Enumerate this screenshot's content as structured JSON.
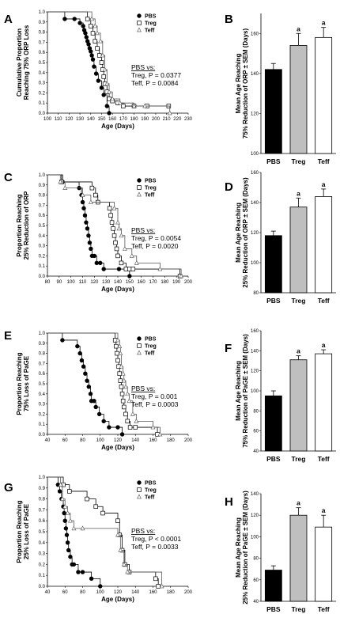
{
  "colors": {
    "PBS": "#000000",
    "Treg": "#bfbfbf",
    "Teff": "#ffffff"
  },
  "chart_data": [
    {
      "panel": "A",
      "type": "line",
      "subtype": "kaplan-meier",
      "xlabel": "Age (Days)",
      "ylabel": [
        "Cumulative Proportion",
        "Reaching 75% ORP Loss"
      ],
      "xlim": [
        100,
        230
      ],
      "ylim": [
        0,
        1
      ],
      "xticks": [
        100,
        110,
        120,
        130,
        140,
        150,
        160,
        170,
        180,
        190,
        200,
        210,
        220,
        230
      ],
      "yticks": [
        0,
        0.1,
        0.2,
        0.3,
        0.4,
        0.5,
        0.6,
        0.7,
        0.8,
        0.9,
        1
      ],
      "legend": {
        "position": "top-right",
        "entries": [
          "PBS",
          "Treg",
          "Teff"
        ]
      },
      "annotation": {
        "title": "PBS vs:",
        "lines": [
          "Treg, P = 0.0377",
          "Teff, P = 0.0084"
        ]
      },
      "series": [
        {
          "name": "PBS",
          "marker": "filled-circle",
          "x": [
            116,
            125,
            130,
            133,
            134,
            135,
            136,
            137,
            138,
            139,
            140,
            141,
            142,
            143,
            145,
            147,
            150,
            152,
            155,
            157
          ],
          "y": [
            0.93,
            0.93,
            0.89,
            0.86,
            0.82,
            0.79,
            0.75,
            0.71,
            0.68,
            0.64,
            0.61,
            0.57,
            0.53,
            0.46,
            0.39,
            0.32,
            0.25,
            0.18,
            0.07,
            0
          ]
        },
        {
          "name": "Treg",
          "marker": "open-square",
          "x": [
            137,
            140,
            142,
            144,
            146,
            148,
            150,
            151,
            152,
            153,
            155,
            157,
            160,
            165,
            170,
            180,
            192,
            212
          ],
          "y": [
            0.93,
            0.86,
            0.79,
            0.71,
            0.64,
            0.57,
            0.5,
            0.43,
            0.36,
            0.29,
            0.21,
            0.14,
            0.12,
            0.1,
            0.07,
            0.07,
            0.07,
            0.07
          ]
        },
        {
          "name": "Teff",
          "marker": "open-triangle",
          "x": [
            141,
            144,
            146,
            149,
            151,
            153,
            155,
            157,
            160,
            167,
            180,
            190,
            213
          ],
          "y": [
            0.93,
            0.86,
            0.79,
            0.71,
            0.57,
            0.43,
            0.29,
            0.21,
            0.14,
            0.1,
            0.07,
            0.07,
            0
          ]
        }
      ]
    },
    {
      "panel": "B",
      "type": "bar",
      "ylabel": [
        "Mean Age Reaching",
        "75% Reduction of ORP ± SEM (Days)"
      ],
      "ylim": [
        100,
        170
      ],
      "yticks": [
        100,
        120,
        140,
        160
      ],
      "categories": [
        "PBS",
        "Treg",
        "Teff"
      ],
      "values": [
        142,
        154,
        158
      ],
      "errors": [
        3,
        6,
        5
      ],
      "significance": [
        "",
        "a",
        "a"
      ]
    },
    {
      "panel": "C",
      "type": "line",
      "subtype": "kaplan-meier",
      "xlabel": "Age (Days)",
      "ylabel": [
        "Proportion Reaching",
        "25% Reduction of ORP"
      ],
      "xlim": [
        80,
        200
      ],
      "ylim": [
        0,
        1
      ],
      "xticks": [
        80,
        90,
        100,
        110,
        120,
        130,
        140,
        150,
        160,
        170,
        180,
        190,
        200
      ],
      "yticks": [
        0,
        0.1,
        0.2,
        0.3,
        0.4,
        0.5,
        0.6,
        0.7,
        0.8,
        0.9,
        1
      ],
      "legend": {
        "position": "top-right",
        "entries": [
          "PBS",
          "Treg",
          "Teff"
        ]
      },
      "annotation": {
        "title": "PBS vs:",
        "lines": [
          "Treg, P = 0.0054",
          "Teff, P = 0.0020"
        ]
      },
      "series": [
        {
          "name": "PBS",
          "marker": "filled-circle",
          "x": [
            93,
            107,
            109,
            110,
            111,
            112,
            113,
            114,
            115,
            116,
            117,
            118,
            120,
            122,
            125,
            128,
            141,
            150
          ],
          "y": [
            0.93,
            0.87,
            0.8,
            0.73,
            0.67,
            0.6,
            0.53,
            0.47,
            0.4,
            0.33,
            0.27,
            0.2,
            0.2,
            0.13,
            0.13,
            0.07,
            0.07,
            0
          ]
        },
        {
          "name": "Treg",
          "marker": "open-square",
          "x": [
            92,
            118,
            121,
            123,
            133,
            134,
            135,
            136,
            137,
            138,
            139,
            140,
            143,
            147,
            150,
            153,
            193
          ],
          "y": [
            0.93,
            0.87,
            0.8,
            0.73,
            0.67,
            0.6,
            0.53,
            0.47,
            0.4,
            0.33,
            0.27,
            0.2,
            0.13,
            0.07,
            0.07,
            0.07,
            0
          ]
        },
        {
          "name": "Teff",
          "marker": "open-triangle",
          "x": [
            91,
            95,
            110,
            117,
            137,
            140,
            141,
            143,
            146,
            152,
            156,
            176,
            194
          ],
          "y": [
            0.93,
            0.87,
            0.8,
            0.73,
            0.67,
            0.53,
            0.47,
            0.4,
            0.27,
            0.2,
            0.13,
            0.07,
            0
          ]
        }
      ]
    },
    {
      "panel": "D",
      "type": "bar",
      "ylabel": [
        "Mean Age Reaching",
        "25% Reduction of ORP ± SEM (Days)"
      ],
      "ylim": [
        80,
        160
      ],
      "yticks": [
        80,
        100,
        120,
        140,
        160
      ],
      "categories": [
        "PBS",
        "Treg",
        "Teff"
      ],
      "values": [
        118,
        137,
        144
      ],
      "errors": [
        3,
        6,
        5
      ],
      "significance": [
        "",
        "a",
        "a"
      ]
    },
    {
      "panel": "E",
      "type": "line",
      "subtype": "kaplan-meier",
      "xlabel": "Age (Days)",
      "ylabel": [
        "Proportion Reaching",
        "75% Loss of PaGE"
      ],
      "xlim": [
        40,
        200
      ],
      "ylim": [
        0,
        1
      ],
      "xticks": [
        40,
        60,
        80,
        100,
        120,
        140,
        160,
        180,
        200
      ],
      "yticks": [
        0,
        0.1,
        0.2,
        0.3,
        0.4,
        0.5,
        0.6,
        0.7,
        0.8,
        0.9,
        1
      ],
      "legend": {
        "position": "top-right",
        "entries": [
          "PBS",
          "Treg",
          "Teff"
        ]
      },
      "annotation": {
        "title": "PBS vs:",
        "lines": [
          "Treg, P = 0.001",
          "Teff, P = 0.0003"
        ]
      },
      "series": [
        {
          "name": "PBS",
          "marker": "filled-circle",
          "x": [
            57,
            74,
            77,
            79,
            81,
            83,
            85,
            87,
            89,
            90,
            93,
            95,
            99,
            104,
            110,
            120,
            125
          ],
          "y": [
            0.93,
            0.87,
            0.8,
            0.73,
            0.67,
            0.6,
            0.53,
            0.47,
            0.4,
            0.33,
            0.33,
            0.27,
            0.2,
            0.13,
            0.07,
            0.07,
            0
          ]
        },
        {
          "name": "Treg",
          "marker": "open-square",
          "x": [
            117,
            118,
            119,
            120,
            121,
            122,
            123,
            124,
            125,
            126,
            127,
            129,
            131,
            134,
            140,
            165
          ],
          "y": [
            0.93,
            0.87,
            0.8,
            0.73,
            0.67,
            0.6,
            0.53,
            0.47,
            0.4,
            0.33,
            0.27,
            0.2,
            0.13,
            0.07,
            0.07,
            0
          ]
        },
        {
          "name": "Teff",
          "marker": "open-triangle",
          "x": [
            120,
            122,
            123,
            124,
            126,
            127,
            129,
            131,
            133,
            137,
            141,
            160,
            168
          ],
          "y": [
            0.93,
            0.87,
            0.8,
            0.67,
            0.6,
            0.53,
            0.47,
            0.4,
            0.33,
            0.2,
            0.13,
            0.07,
            0
          ]
        }
      ]
    },
    {
      "panel": "F",
      "type": "bar",
      "ylabel": [
        "Mean Age Reaching",
        "75% Reduction of PaGE ± SEM (Days)"
      ],
      "ylim": [
        40,
        160
      ],
      "yticks": [
        40,
        60,
        80,
        100,
        120,
        140,
        160
      ],
      "categories": [
        "PBS",
        "Treg",
        "Teff"
      ],
      "values": [
        95,
        131,
        137
      ],
      "errors": [
        5,
        4,
        4
      ],
      "significance": [
        "",
        "a",
        "a"
      ]
    },
    {
      "panel": "G",
      "type": "line",
      "subtype": "kaplan-meier",
      "xlabel": "Age (Days)",
      "ylabel": [
        "Proportion Reaching",
        "25% Loss of PaGE"
      ],
      "xlim": [
        40,
        200
      ],
      "ylim": [
        0,
        1
      ],
      "xticks": [
        40,
        60,
        80,
        100,
        120,
        140,
        160,
        180,
        200
      ],
      "yticks": [
        0,
        0.1,
        0.2,
        0.3,
        0.4,
        0.5,
        0.6,
        0.7,
        0.8,
        0.9,
        1
      ],
      "legend": {
        "position": "top-right",
        "entries": [
          "PBS",
          "Treg",
          "Teff"
        ]
      },
      "annotation": {
        "title": "PBS vs:",
        "lines": [
          "Treg, P < 0.0001",
          "Teff, P = 0.0033"
        ]
      },
      "series": [
        {
          "name": "PBS",
          "marker": "filled-circle",
          "x": [
            52,
            54,
            56,
            58,
            59,
            60,
            61,
            62,
            63,
            64,
            66,
            68,
            70,
            75,
            80,
            90,
            100
          ],
          "y": [
            0.93,
            0.87,
            0.8,
            0.73,
            0.67,
            0.6,
            0.53,
            0.47,
            0.4,
            0.33,
            0.27,
            0.2,
            0.2,
            0.13,
            0.13,
            0.07,
            0
          ]
        },
        {
          "name": "Treg",
          "marker": "open-square",
          "x": [
            58,
            65,
            85,
            95,
            103,
            120,
            122,
            125,
            128,
            133,
            163,
            166
          ],
          "y": [
            0.93,
            0.87,
            0.8,
            0.73,
            0.67,
            0.6,
            0.47,
            0.33,
            0.2,
            0.13,
            0.07,
            0
          ]
        },
        {
          "name": "Teff",
          "marker": "open-triangle",
          "x": [
            55,
            57,
            60,
            63,
            66,
            70,
            80,
            120,
            123,
            127,
            131,
            170
          ],
          "y": [
            0.93,
            0.8,
            0.73,
            0.67,
            0.6,
            0.53,
            0.53,
            0.47,
            0.33,
            0.2,
            0.13,
            0
          ]
        }
      ]
    },
    {
      "panel": "H",
      "type": "bar",
      "ylabel": [
        "Mean Age Reaching",
        "25% Reduction of PaGE ± SEM (Days)"
      ],
      "ylim": [
        40,
        140
      ],
      "yticks": [
        40,
        60,
        80,
        100,
        120,
        140
      ],
      "categories": [
        "PBS",
        "Treg",
        "Teff"
      ],
      "values": [
        69,
        120,
        109
      ],
      "errors": [
        4,
        7,
        11
      ],
      "significance": [
        "",
        "a",
        "a"
      ]
    }
  ]
}
